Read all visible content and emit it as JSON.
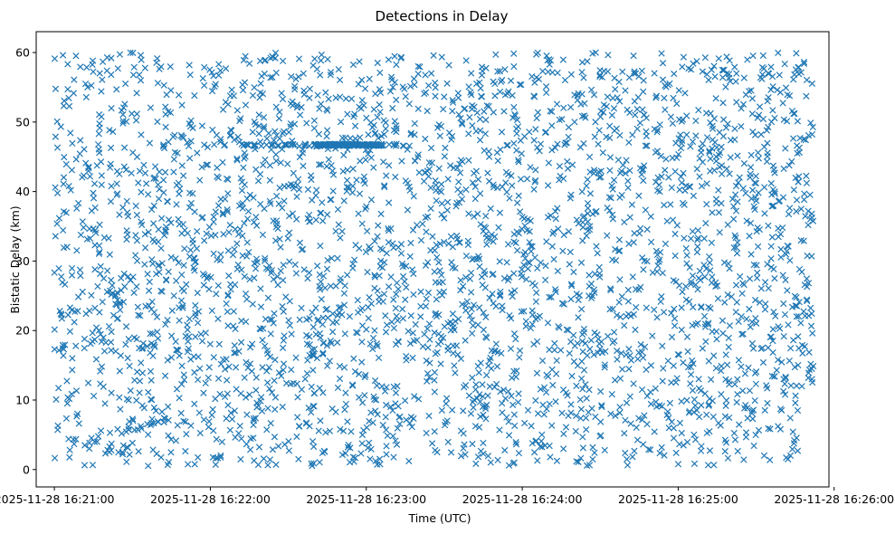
{
  "chart_data": {
    "type": "scatter",
    "title": "Detections in Delay",
    "xlabel": "Time (UTC)",
    "ylabel": "Bistatic Delay (km)",
    "marker": "x",
    "color": "#1f77b4",
    "grid": false,
    "legend": "none",
    "xlim": [
      "2025-11-28 16:20:53",
      "2025-11-28 16:25:58"
    ],
    "ylim": [
      -2.5,
      63
    ],
    "x_ticks": [
      "2025-11-28 16:21:00",
      "2025-11-28 16:22:00",
      "2025-11-28 16:23:00",
      "2025-11-28 16:24:00",
      "2025-11-28 16:25:00",
      "2025-11-28 16:26:00"
    ],
    "y_ticks": [
      "0",
      "10",
      "20",
      "30",
      "40",
      "50",
      "60"
    ],
    "points": {
      "x_range": [
        "2025-11-28 16:21:00",
        "2025-11-28 16:25:52"
      ],
      "y_range": [
        0.5,
        60
      ],
      "count": 3200,
      "distribution": "approximately uniform random",
      "dense_band": {
        "y": 46.7,
        "x_range": [
          "2025-11-28 16:22:10",
          "2025-11-28 16:23:17"
        ],
        "densest_x_range": [
          "2025-11-28 16:22:40",
          "2025-11-28 16:23:07"
        ]
      }
    }
  }
}
